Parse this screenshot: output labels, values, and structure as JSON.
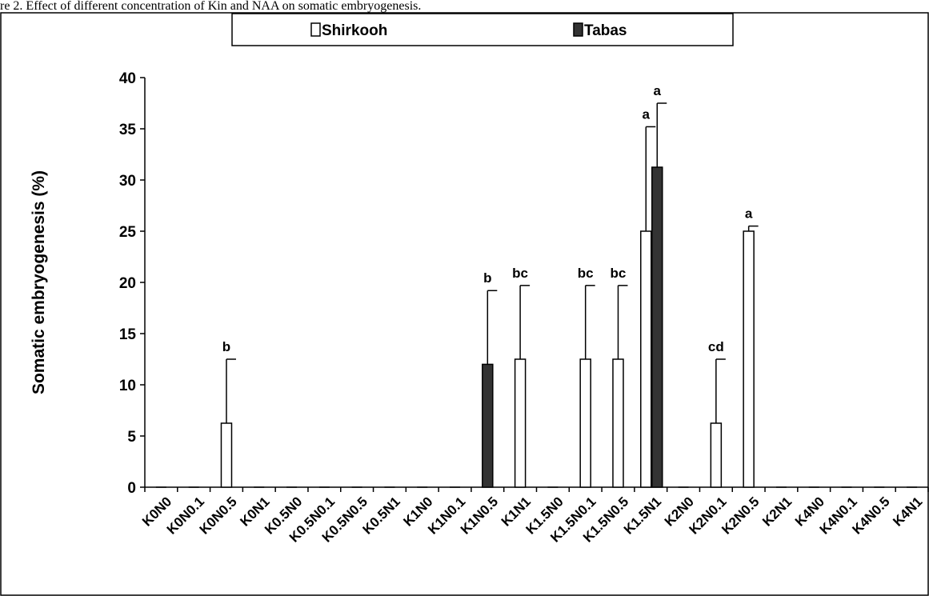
{
  "caption_fragment": "re 2. Effect of different concentration of Kin and NAA on somatic embryogenesis.",
  "chart_data": {
    "type": "bar",
    "ylabel": "Somatic embryogenesis (%)",
    "xlabel": "",
    "ylim": [
      0,
      40
    ],
    "yticks": [
      0,
      5,
      10,
      15,
      20,
      25,
      30,
      35,
      40
    ],
    "legend_position": "top-center",
    "grid": false,
    "categories": [
      "K0N0",
      "K0N0.1",
      "K0N0.5",
      "K0N1",
      "K0.5N0",
      "K0.5N0.1",
      "K0.5N0.5",
      "K0.5N1",
      "K1N0",
      "K1N0.1",
      "K1N0.5",
      "K1N1",
      "K1.5N0",
      "K1.5N0.1",
      "K1.5N0.5",
      "K1.5N1",
      "K2N0",
      "K2N0.1",
      "K2N0.5",
      "K2N1",
      "K4N0",
      "K4N0.1",
      "K4N0.5",
      "K4N1"
    ],
    "series": [
      {
        "name": "Shirkooh",
        "color": "#ffffff",
        "values": [
          0,
          0,
          6.25,
          0,
          0,
          0,
          0,
          0,
          0,
          0,
          0,
          12.5,
          0,
          12.5,
          12.5,
          25,
          0,
          6.25,
          25,
          0,
          0,
          0,
          0,
          0
        ],
        "errors": [
          0,
          0,
          6.25,
          0,
          0,
          0,
          0,
          0,
          0,
          0,
          0,
          7.2,
          0,
          7.2,
          7.2,
          10.2,
          0,
          6.25,
          0.5,
          0,
          0,
          0,
          0,
          0
        ],
        "labels": [
          "",
          "",
          "b",
          "",
          "",
          "",
          "",
          "",
          "",
          "",
          "",
          "bc",
          "",
          "bc",
          "bc",
          "a",
          "",
          "cd",
          "a",
          "",
          "",
          "",
          "",
          ""
        ]
      },
      {
        "name": "Tabas",
        "color": "#333333",
        "values": [
          0,
          0,
          0,
          0,
          0,
          0,
          0,
          0,
          0,
          0,
          12,
          0,
          0,
          0,
          0,
          31.25,
          0,
          0,
          0,
          0,
          0,
          0,
          0,
          0
        ],
        "errors": [
          0,
          0,
          0,
          0,
          0,
          0,
          0,
          0,
          0,
          0,
          7.2,
          0,
          0,
          0,
          0,
          6.25,
          0,
          0,
          0,
          0,
          0,
          0,
          0,
          0
        ],
        "labels": [
          "",
          "",
          "",
          "",
          "",
          "",
          "",
          "",
          "",
          "",
          "b",
          "",
          "",
          "",
          "",
          "a",
          "",
          "",
          "",
          "",
          "",
          "",
          "",
          ""
        ]
      }
    ]
  }
}
